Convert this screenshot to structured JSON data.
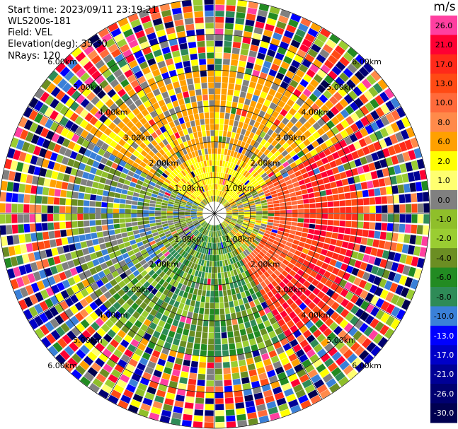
{
  "header": {
    "start_time": "Start time: 2023/09/11 23:19:21",
    "instrument": "WLS200s-181",
    "field": "Field: VEL",
    "elevation": "Elevation(deg): 35.30",
    "nrays": "NRays: 120"
  },
  "colorbar": {
    "unit": "m/s",
    "levels": [
      {
        "label": "26.0",
        "color": "#ff3fa0",
        "text": "#000000"
      },
      {
        "label": "21.0",
        "color": "#ff0033",
        "text": "#000000"
      },
      {
        "label": "17.0",
        "color": "#ff2a1a",
        "text": "#000000"
      },
      {
        "label": "13.0",
        "color": "#ff4a14",
        "text": "#000000"
      },
      {
        "label": "10.0",
        "color": "#ff6a3a",
        "text": "#000000"
      },
      {
        "label": "8.0",
        "color": "#ff8a4a",
        "text": "#000000"
      },
      {
        "label": "6.0",
        "color": "#ffa000",
        "text": "#000000"
      },
      {
        "label": "2.0",
        "color": "#ffff00",
        "text": "#000000"
      },
      {
        "label": "1.0",
        "color": "#ffff70",
        "text": "#000000"
      },
      {
        "label": "0.0",
        "color": "#808080",
        "text": "#000000"
      },
      {
        "label": "-1.0",
        "color": "#8fbf2a",
        "text": "#000000"
      },
      {
        "label": "-2.0",
        "color": "#9acd32",
        "text": "#000000"
      },
      {
        "label": "-4.0",
        "color": "#6b8e23",
        "text": "#000000"
      },
      {
        "label": "-6.0",
        "color": "#228b22",
        "text": "#000000"
      },
      {
        "label": "-8.0",
        "color": "#2e8b57",
        "text": "#000000"
      },
      {
        "label": "-10.0",
        "color": "#3a80d8",
        "text": "#000000"
      },
      {
        "label": "-13.0",
        "color": "#0000ff",
        "text": "#ffffff"
      },
      {
        "label": "-17.0",
        "color": "#0000c8",
        "text": "#ffffff"
      },
      {
        "label": "-21.0",
        "color": "#000096",
        "text": "#ffffff"
      },
      {
        "label": "-26.0",
        "color": "#000070",
        "text": "#ffffff"
      },
      {
        "label": "-30.0",
        "color": "#000050",
        "text": "#ffffff"
      }
    ]
  },
  "chart_data": {
    "type": "heatmap",
    "projection": "polar-ppi",
    "field": "VEL",
    "units": "m/s",
    "nrays": 120,
    "max_range_km": 6.0,
    "range_rings_km": [
      1.0,
      2.0,
      3.0,
      4.0,
      5.0,
      6.0
    ],
    "ring_label_text": [
      "1.00km",
      "2.00km",
      "3.00km",
      "4.00km",
      "5.00km",
      "6.00km"
    ],
    "ring_label_azimuths_deg": [
      45,
      135,
      225,
      315
    ],
    "spoke_azimuths_deg": [
      0,
      30,
      60,
      90,
      120,
      150,
      180,
      210,
      240,
      270,
      300,
      330
    ],
    "pattern": [
      {
        "sector": "north",
        "az": [
          300,
          60
        ],
        "range_km": [
          0.5,
          4.5
        ],
        "values": [
          2.0,
          6.0,
          0.0
        ]
      },
      {
        "sector": "east",
        "az": [
          60,
          150
        ],
        "range_km": [
          1.5,
          6.0
        ],
        "values": [
          10.0,
          13.0,
          17.0,
          21.0
        ]
      },
      {
        "sector": "south",
        "az": [
          150,
          230
        ],
        "range_km": [
          0.3,
          4.0
        ],
        "values": [
          -4.0,
          -6.0,
          -8.0,
          -2.0
        ]
      },
      {
        "sector": "west",
        "az": [
          230,
          300
        ],
        "range_km": [
          0.5,
          4.0
        ],
        "values": [
          -10.0,
          -4.0,
          0.0,
          -1.0
        ]
      },
      {
        "sector": "far-ring-noise",
        "az": [
          0,
          360
        ],
        "range_km": [
          4.5,
          6.0
        ],
        "values": [
          "mixed"
        ]
      }
    ]
  }
}
